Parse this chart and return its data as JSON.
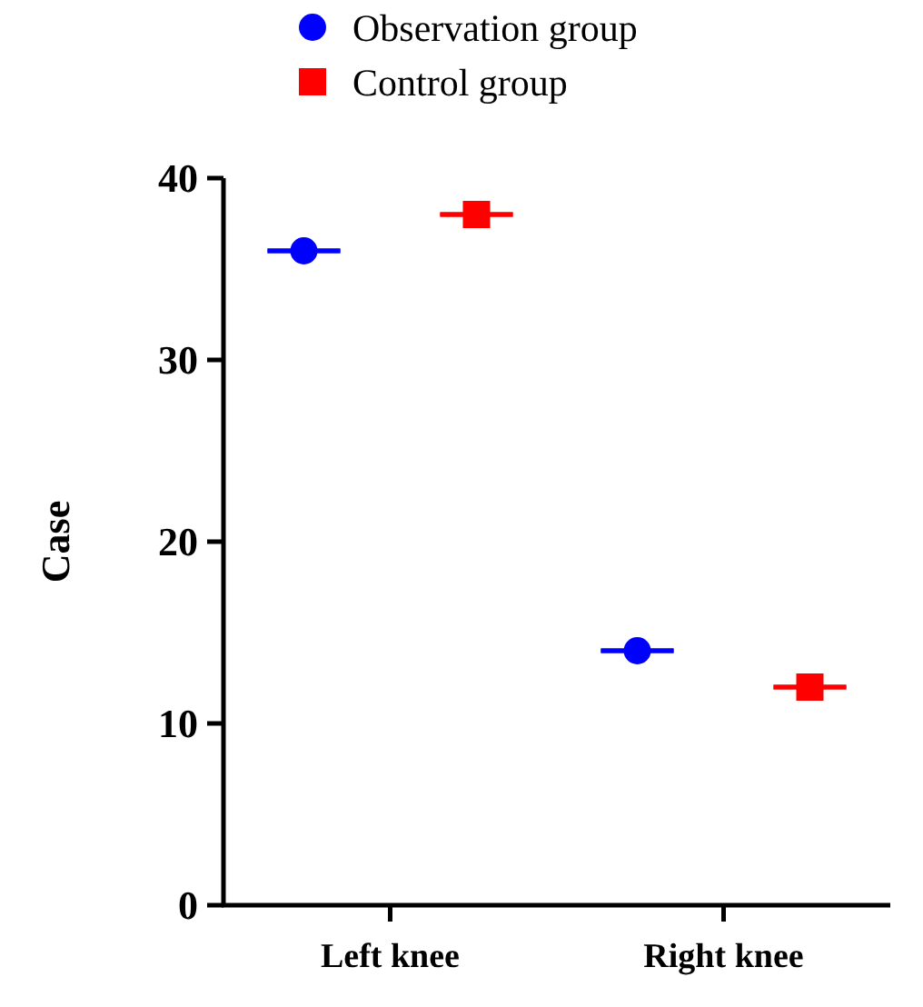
{
  "chart_data": {
    "type": "scatter",
    "ylabel": "Case",
    "categories": [
      "Left knee",
      "Right knee"
    ],
    "series": [
      {
        "name": "Observation group",
        "color": "#0000ff",
        "marker": "circle",
        "values": [
          36,
          14
        ],
        "errors": [
          0,
          0
        ]
      },
      {
        "name": "Control group",
        "color": "#ff0000",
        "marker": "square",
        "values": [
          38,
          12
        ],
        "errors": [
          0,
          0
        ]
      }
    ],
    "ylim": [
      0,
      40
    ],
    "yticks": [
      0,
      10,
      20,
      30,
      40
    ],
    "grid": false,
    "legend": "top"
  }
}
